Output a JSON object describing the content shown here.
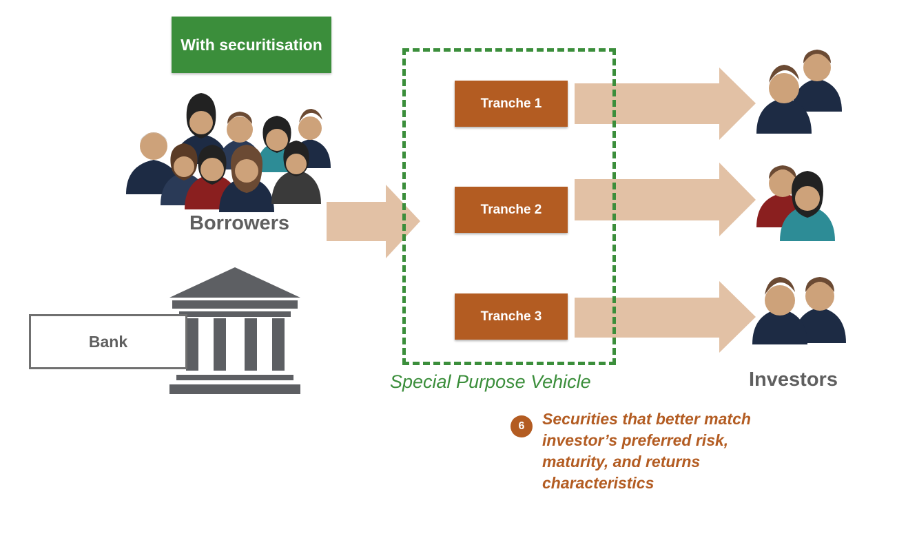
{
  "header": {
    "badge_label": "With securitisation"
  },
  "borrowers": {
    "label": "Borrowers"
  },
  "bank": {
    "label": "Bank"
  },
  "spv": {
    "label": "Special Purpose Vehicle",
    "tranches": [
      {
        "label": "Tranche 1"
      },
      {
        "label": "Tranche 2"
      },
      {
        "label": "Tranche 3"
      }
    ]
  },
  "investors": {
    "label": "Investors"
  },
  "note": {
    "number": "6",
    "text": "Securities that better match investor’s preferred risk, maturity, and returns characteristics"
  },
  "colors": {
    "green": "#3b8e3b",
    "tranche": "#b35c22",
    "arrow": "#e2c1a5",
    "text_gray": "#5f5f5f",
    "bank_gray": "#5d5f63"
  },
  "icons": {
    "borrowers": "people-group-icon",
    "bank": "bank-building-icon",
    "investors": "investor-pair-icon"
  }
}
